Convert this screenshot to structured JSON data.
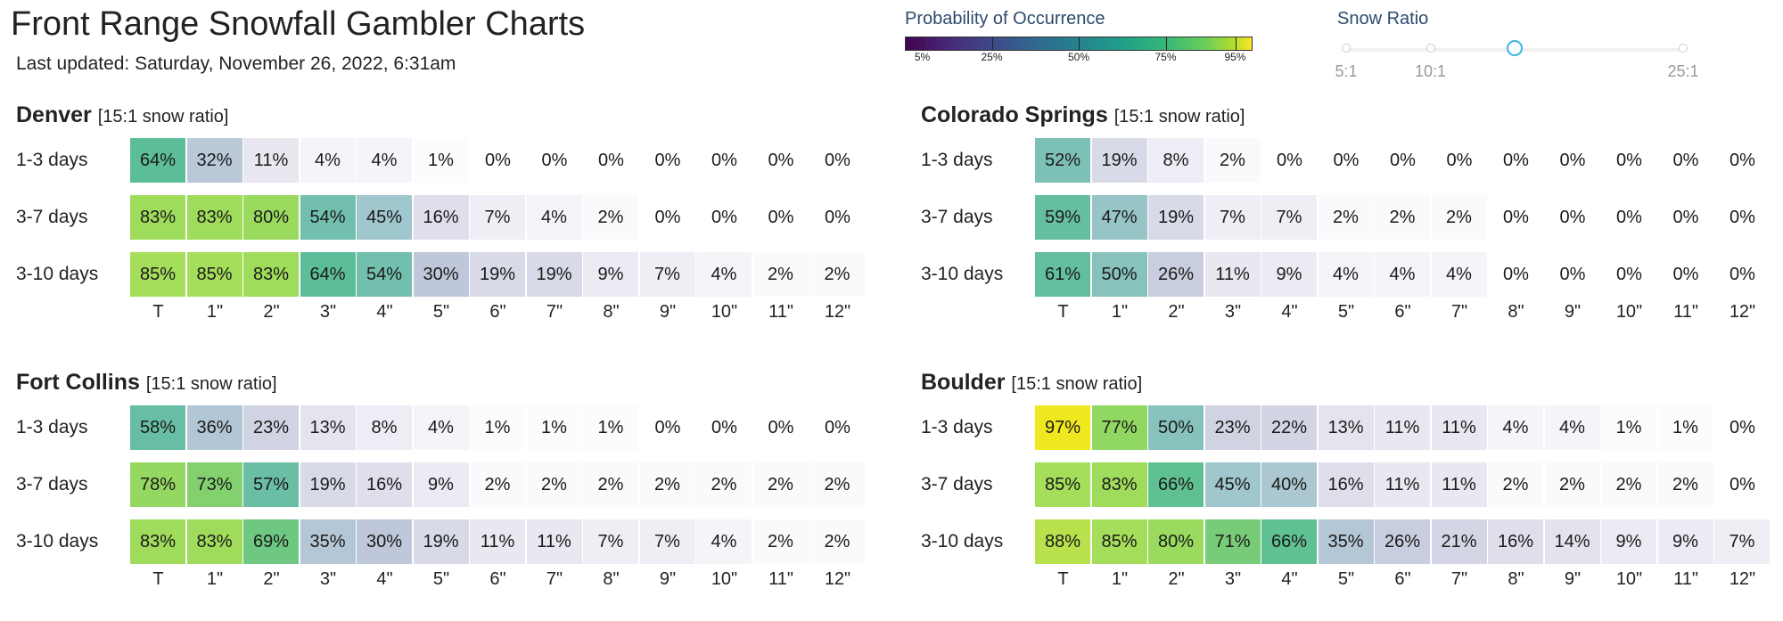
{
  "header": {
    "title": "Front Range Snowfall Gambler Charts",
    "updated": "Last updated: Saturday, November 26, 2022, 6:31am"
  },
  "legend": {
    "title": "Probability of Occurrence",
    "ticks": [
      "5%",
      "25%",
      "50%",
      "75%",
      "95%"
    ],
    "tick_values": [
      5,
      25,
      50,
      75,
      95
    ],
    "colormap": "viridis"
  },
  "snow_ratio": {
    "title": "Snow Ratio",
    "labels": [
      "5:1",
      "10:1",
      "25:1"
    ],
    "stops": [
      5,
      10,
      15,
      25
    ],
    "selected": 15
  },
  "columns": [
    "T",
    "1\"",
    "2\"",
    "3\"",
    "4\"",
    "5\"",
    "6\"",
    "7\"",
    "8\"",
    "9\"",
    "10\"",
    "11\"",
    "12\""
  ],
  "panels": [
    {
      "name": "Denver",
      "ratio_note": "[15:1 snow ratio]",
      "rows": [
        {
          "label": "1-3 days",
          "values": [
            64,
            32,
            11,
            4,
            4,
            1,
            0,
            0,
            0,
            0,
            0,
            0,
            0
          ]
        },
        {
          "label": "3-7 days",
          "values": [
            83,
            83,
            80,
            54,
            45,
            16,
            7,
            4,
            2,
            0,
            0,
            0,
            0
          ]
        },
        {
          "label": "3-10 days",
          "values": [
            85,
            85,
            83,
            64,
            54,
            30,
            19,
            19,
            9,
            7,
            4,
            2,
            2
          ]
        }
      ]
    },
    {
      "name": "Colorado Springs",
      "ratio_note": "[15:1 snow ratio]",
      "rows": [
        {
          "label": "1-3 days",
          "values": [
            52,
            19,
            8,
            2,
            0,
            0,
            0,
            0,
            0,
            0,
            0,
            0,
            0
          ]
        },
        {
          "label": "3-7 days",
          "values": [
            59,
            47,
            19,
            7,
            7,
            2,
            2,
            2,
            0,
            0,
            0,
            0,
            0
          ]
        },
        {
          "label": "3-10 days",
          "values": [
            61,
            50,
            26,
            11,
            9,
            4,
            4,
            4,
            0,
            0,
            0,
            0,
            0
          ]
        }
      ]
    },
    {
      "name": "Fort Collins",
      "ratio_note": "[15:1 snow ratio]",
      "rows": [
        {
          "label": "1-3 days",
          "values": [
            58,
            36,
            23,
            13,
            8,
            4,
            1,
            1,
            1,
            0,
            0,
            0,
            0
          ]
        },
        {
          "label": "3-7 days",
          "values": [
            78,
            73,
            57,
            19,
            16,
            9,
            2,
            2,
            2,
            2,
            2,
            2,
            2
          ]
        },
        {
          "label": "3-10 days",
          "values": [
            83,
            83,
            69,
            35,
            30,
            19,
            11,
            11,
            7,
            7,
            4,
            2,
            2
          ]
        }
      ]
    },
    {
      "name": "Boulder",
      "ratio_note": "[15:1 snow ratio]",
      "rows": [
        {
          "label": "1-3 days",
          "values": [
            97,
            77,
            50,
            23,
            22,
            13,
            11,
            11,
            4,
            4,
            1,
            1,
            0
          ]
        },
        {
          "label": "3-7 days",
          "values": [
            85,
            83,
            66,
            45,
            40,
            16,
            11,
            11,
            2,
            2,
            2,
            2,
            0
          ]
        },
        {
          "label": "3-10 days",
          "values": [
            88,
            85,
            80,
            71,
            66,
            35,
            26,
            21,
            16,
            14,
            9,
            9,
            7
          ]
        }
      ]
    }
  ]
}
